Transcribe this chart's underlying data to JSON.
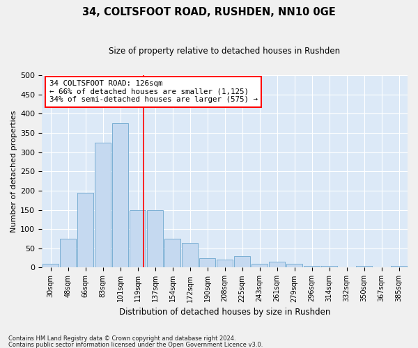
{
  "title": "34, COLTSFOOT ROAD, RUSHDEN, NN10 0GE",
  "subtitle": "Size of property relative to detached houses in Rushden",
  "xlabel": "Distribution of detached houses by size in Rushden",
  "ylabel": "Number of detached properties",
  "bar_color": "#c5d9f0",
  "bar_edge_color": "#7bafd4",
  "background_color": "#dce9f7",
  "grid_color": "#ffffff",
  "fig_background": "#f0f0f0",
  "categories": [
    "30sqm",
    "48sqm",
    "66sqm",
    "83sqm",
    "101sqm",
    "119sqm",
    "137sqm",
    "154sqm",
    "172sqm",
    "190sqm",
    "208sqm",
    "225sqm",
    "243sqm",
    "261sqm",
    "279sqm",
    "296sqm",
    "314sqm",
    "332sqm",
    "350sqm",
    "367sqm",
    "385sqm"
  ],
  "values": [
    10,
    75,
    195,
    325,
    375,
    150,
    150,
    75,
    65,
    25,
    20,
    30,
    10,
    15,
    10,
    5,
    5,
    0,
    5,
    0,
    5
  ],
  "ylim": [
    0,
    500
  ],
  "yticks": [
    0,
    50,
    100,
    150,
    200,
    250,
    300,
    350,
    400,
    450,
    500
  ],
  "vline_pos": 5.35,
  "annotation_text": "34 COLTSFOOT ROAD: 126sqm\n← 66% of detached houses are smaller (1,125)\n34% of semi-detached houses are larger (575) →",
  "footnote1": "Contains HM Land Registry data © Crown copyright and database right 2024.",
  "footnote2": "Contains public sector information licensed under the Open Government Licence v3.0."
}
